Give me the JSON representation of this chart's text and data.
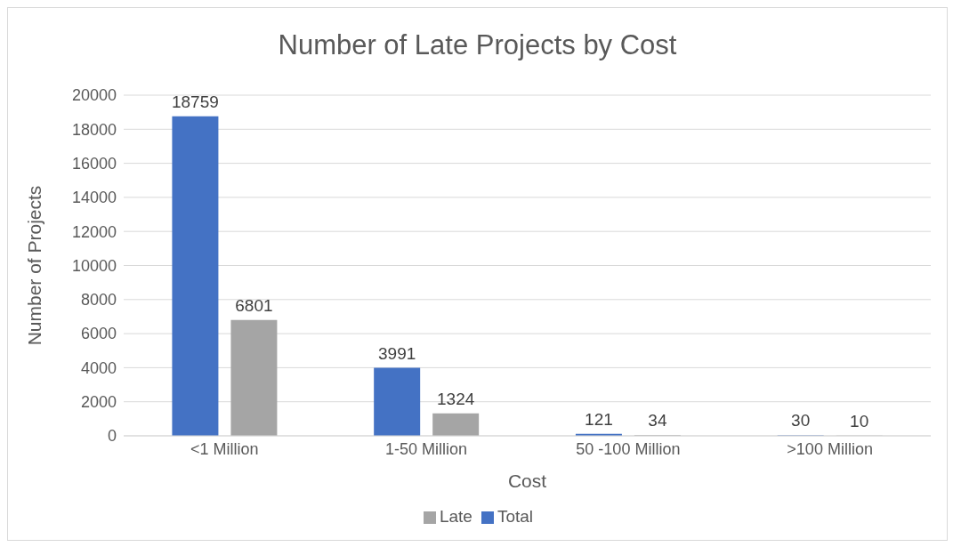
{
  "chart_data": {
    "type": "bar",
    "title": "Number of Late Projects by Cost",
    "xlabel": "Cost",
    "ylabel": "Number of Projects",
    "categories": [
      "<1 Million",
      "1-50 Million",
      "50 -100 Million",
      ">100 Million"
    ],
    "series": [
      {
        "name": "Total",
        "color": "#4472c4",
        "values": [
          18759,
          3991,
          121,
          30
        ]
      },
      {
        "name": "Late",
        "color": "#a5a5a5",
        "values": [
          6801,
          1324,
          34,
          10
        ]
      }
    ],
    "ylim": [
      0,
      20000
    ],
    "yticks": [
      0,
      2000,
      4000,
      6000,
      8000,
      10000,
      12000,
      14000,
      16000,
      18000,
      20000
    ],
    "grid": "y",
    "legend": "bottom",
    "data_labels": true
  }
}
